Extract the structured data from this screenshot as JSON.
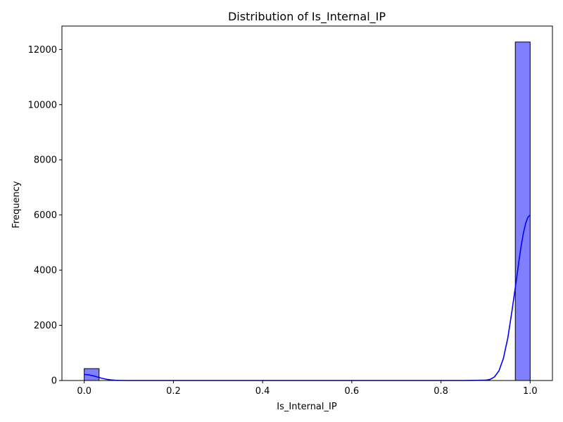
{
  "chart_data": {
    "type": "bar",
    "title": "Distribution of Is_Internal_IP",
    "xlabel": "Is_Internal_IP",
    "ylabel": "Frequency",
    "xlim": [
      -0.05,
      1.05
    ],
    "ylim": [
      0,
      12850
    ],
    "xticks": [
      0.0,
      0.2,
      0.4,
      0.6,
      0.8,
      1.0
    ],
    "xtick_labels": [
      "0.0",
      "0.2",
      "0.4",
      "0.6",
      "0.8",
      "1.0"
    ],
    "yticks": [
      0,
      2000,
      4000,
      6000,
      8000,
      10000,
      12000
    ],
    "ytick_labels": [
      "0",
      "2000",
      "4000",
      "6000",
      "8000",
      "10000",
      "12000"
    ],
    "grid": false,
    "bin_width": 0.0333,
    "bins": [
      {
        "x0": 0.0,
        "x1": 0.0333,
        "count": 430
      },
      {
        "x0": 0.9667,
        "x1": 1.0,
        "count": 12270
      }
    ],
    "kde": {
      "color": "#0000ff",
      "x": [
        0.0,
        0.01,
        0.02,
        0.03,
        0.04,
        0.05,
        0.06,
        0.07,
        0.08,
        0.1,
        0.15,
        0.3,
        0.5,
        0.7,
        0.85,
        0.9,
        0.91,
        0.92,
        0.93,
        0.94,
        0.95,
        0.96,
        0.97,
        0.975,
        0.98,
        0.985,
        0.99,
        0.995,
        1.0
      ],
      "y": [
        220,
        205,
        170,
        125,
        80,
        45,
        20,
        8,
        3,
        0,
        0,
        0,
        0,
        0,
        0,
        10,
        40,
        130,
        350,
        800,
        1550,
        2600,
        3750,
        4350,
        4900,
        5350,
        5700,
        5920,
        6000
      ]
    },
    "bar_fill": "#8080ff",
    "bar_edge": "#000000"
  }
}
